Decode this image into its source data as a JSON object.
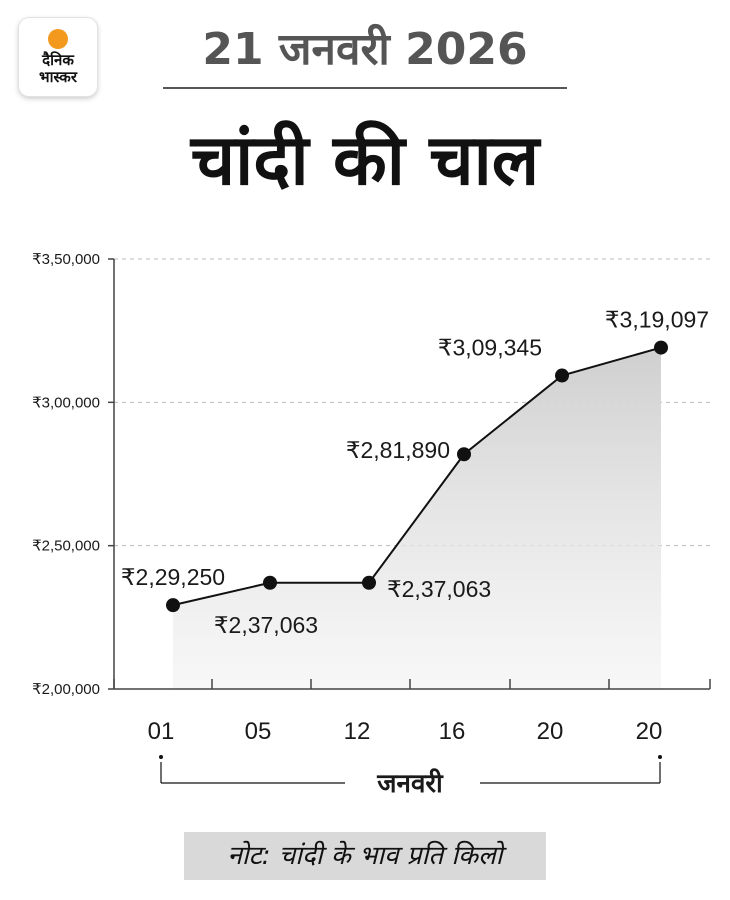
{
  "brand": {
    "logo_line1": "दैनिक",
    "logo_line2": "भास्कर"
  },
  "header": {
    "date": "21 जनवरी 2026",
    "title": "चांदी की चाल"
  },
  "note": "नोट: चांदी के भाव प्रति किलो",
  "chart_data": {
    "type": "area",
    "categories": [
      "01",
      "05",
      "12",
      "16",
      "20",
      "20"
    ],
    "values": [
      229250,
      237063,
      237063,
      281890,
      309345,
      319097
    ],
    "value_labels": [
      "₹2,29,250",
      "₹2,37,063",
      "₹2,37,063",
      "₹2,81,890",
      "₹3,09,345",
      "₹3,19,097"
    ],
    "ylim": [
      200000,
      350000
    ],
    "yticks": [
      200000,
      250000,
      300000,
      350000
    ],
    "ytick_labels": [
      "₹2,00,000",
      "₹2,50,000",
      "₹3,00,000",
      "₹3,50,000"
    ],
    "xlabel": "जनवरी",
    "grid": true,
    "colors": {
      "line": "#111111",
      "fill": "#d3d3d3",
      "grid": "#bbbbbb",
      "axis": "#444444"
    }
  }
}
